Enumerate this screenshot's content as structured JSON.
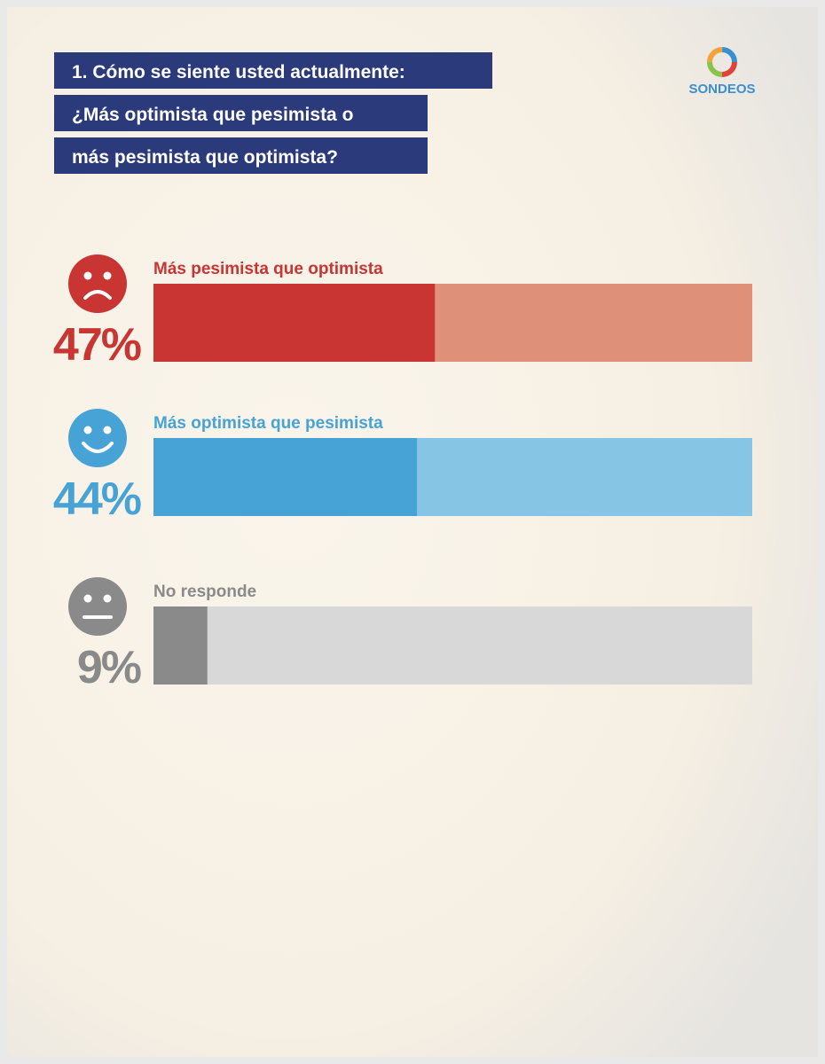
{
  "brand": "SONDEOS",
  "chart_data": {
    "type": "bar",
    "title_lines": [
      "1. Cómo se siente usted actualmente:",
      "¿Más optimista que pesimista o",
      "más pesimista que optimista?"
    ],
    "categories": [
      "Más pesimista que optimista",
      "Más optimista que pesimista",
      "No responde"
    ],
    "values": [
      47,
      44,
      9
    ],
    "value_labels": [
      "47%",
      "44%",
      "9%"
    ],
    "colors": [
      "#c83532",
      "#47a3d6",
      "#8a8a8a"
    ],
    "track_colors": [
      "#df9078",
      "#86c5e3",
      "#d8d8d8"
    ],
    "xlim": [
      0,
      100
    ]
  }
}
